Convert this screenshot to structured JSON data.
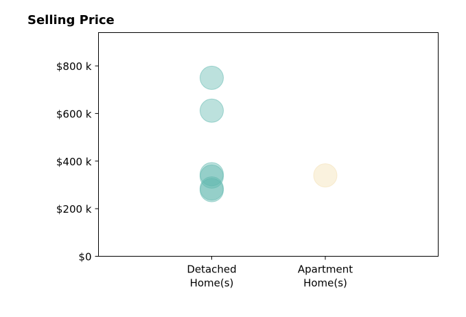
{
  "chart_data": {
    "type": "scatter",
    "title": "Selling Price",
    "xlabel": "",
    "ylabel": "",
    "categories": [
      [
        "Detached",
        "Home(s)"
      ],
      [
        "Apartment",
        "Home(s)"
      ]
    ],
    "ylim": [
      0,
      940000
    ],
    "yticks": [
      0,
      200000,
      400000,
      600000,
      800000
    ],
    "ytick_labels": [
      "$0",
      "$200 k",
      "$400 k",
      "$600 k",
      "$800 k"
    ],
    "grid": false,
    "legend": "none",
    "series": [
      {
        "category_index": 0,
        "color": "#5fb8ae",
        "values": [
          750000,
          612000,
          345000,
          335000,
          285000,
          278000
        ]
      },
      {
        "category_index": 1,
        "color": "#f3dfb0",
        "values": [
          340000
        ]
      }
    ]
  }
}
